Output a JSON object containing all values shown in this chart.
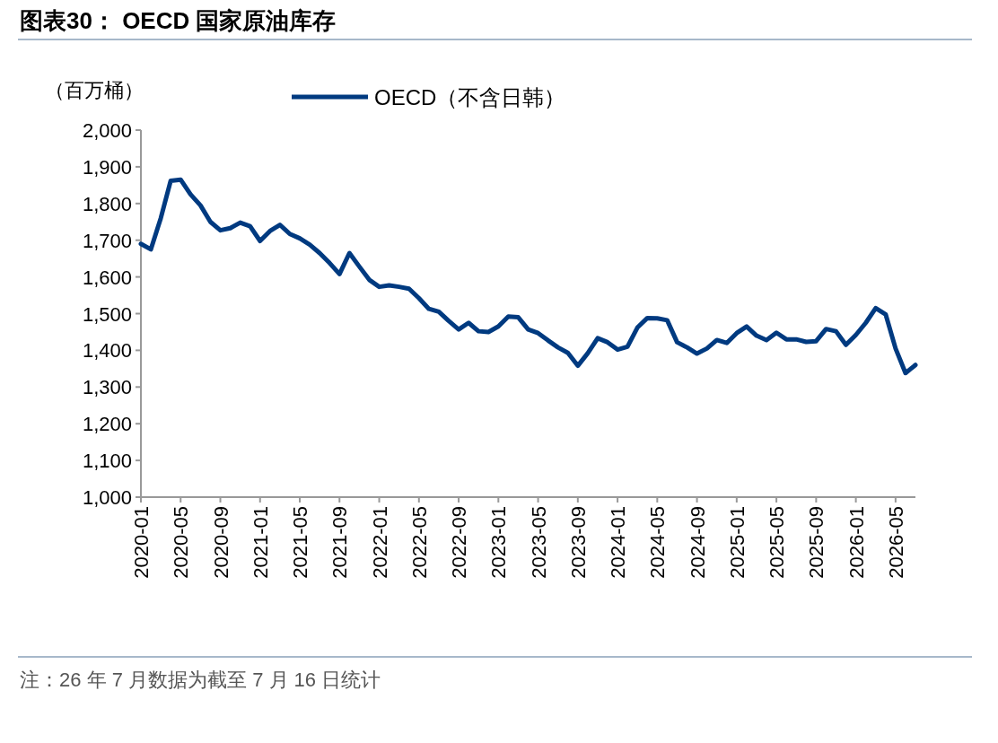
{
  "chart_data": {
    "type": "line",
    "title": "图表30： OECD 国家原油库存",
    "ylabel": "（百万桶）",
    "legend": "top",
    "grid": false,
    "marker": "none",
    "line_style": "solid",
    "annotations": [
      "注：26 年 7 月数据为截至 7 月 16 日统计"
    ],
    "x": [
      "2020-01",
      "2020-02",
      "2020-03",
      "2020-04",
      "2020-05",
      "2020-06",
      "2020-07",
      "2020-08",
      "2020-09",
      "2020-10",
      "2020-11",
      "2020-12",
      "2021-01",
      "2021-02",
      "2021-03",
      "2021-04",
      "2021-05",
      "2021-06",
      "2021-07",
      "2021-08",
      "2021-09",
      "2021-10",
      "2021-11",
      "2021-12",
      "2022-01",
      "2022-02",
      "2022-03",
      "2022-04",
      "2022-05",
      "2022-06",
      "2022-07",
      "2022-08",
      "2022-09",
      "2022-10",
      "2022-11",
      "2022-12",
      "2023-01",
      "2023-02",
      "2023-03",
      "2023-04",
      "2023-05",
      "2023-06",
      "2023-07",
      "2023-08",
      "2023-09",
      "2023-10",
      "2023-11",
      "2023-12",
      "2024-01",
      "2024-02",
      "2024-03",
      "2024-04",
      "2024-05",
      "2024-06",
      "2024-07",
      "2024-08",
      "2024-09",
      "2024-10",
      "2024-11",
      "2024-12",
      "2025-01",
      "2025-02",
      "2025-03",
      "2025-04",
      "2025-05",
      "2025-06",
      "2025-07",
      "2025-08",
      "2025-09",
      "2025-10",
      "2025-11",
      "2025-12",
      "2026-01",
      "2026-02",
      "2026-03",
      "2026-04",
      "2026-05",
      "2026-06",
      "2026-07"
    ],
    "series": [
      {
        "name": "OECD（不含日韩）",
        "color": "#003a80",
        "values": [
          1690,
          1675,
          1760,
          1862,
          1865,
          1825,
          1795,
          1750,
          1727,
          1733,
          1748,
          1738,
          1698,
          1725,
          1742,
          1717,
          1705,
          1688,
          1665,
          1638,
          1608,
          1665,
          1628,
          1592,
          1573,
          1577,
          1573,
          1568,
          1542,
          1513,
          1505,
          1480,
          1457,
          1475,
          1452,
          1450,
          1465,
          1492,
          1490,
          1457,
          1447,
          1427,
          1408,
          1393,
          1358,
          1392,
          1433,
          1422,
          1402,
          1410,
          1462,
          1488,
          1487,
          1482,
          1422,
          1408,
          1391,
          1405,
          1428,
          1420,
          1447,
          1465,
          1440,
          1428,
          1448,
          1430,
          1430,
          1423,
          1425,
          1458,
          1452,
          1415,
          1442,
          1475,
          1515,
          1498,
          1405,
          1338,
          1360
        ]
      }
    ],
    "xlim": [
      "2020-01",
      "2026-07"
    ],
    "xticks": [
      "2020-01",
      "2020-05",
      "2020-09",
      "2021-01",
      "2021-05",
      "2021-09",
      "2022-01",
      "2022-05",
      "2022-09",
      "2023-01",
      "2023-05",
      "2023-09",
      "2024-01",
      "2024-05",
      "2024-09",
      "2025-01",
      "2025-05",
      "2025-09",
      "2026-01",
      "2026-05"
    ],
    "ylim": [
      1000,
      2000
    ],
    "yticks": [
      {
        "value": 1000,
        "label": "1,000"
      },
      {
        "value": 1100,
        "label": "1,100"
      },
      {
        "value": 1200,
        "label": "1,200"
      },
      {
        "value": 1300,
        "label": "1,300"
      },
      {
        "value": 1400,
        "label": "1,400"
      },
      {
        "value": 1500,
        "label": "1,500"
      },
      {
        "value": 1600,
        "label": "1,600"
      },
      {
        "value": 1700,
        "label": "1,700"
      },
      {
        "value": 1800,
        "label": "1,800"
      },
      {
        "value": 1900,
        "label": "1,900"
      },
      {
        "value": 2000,
        "label": "2,000"
      }
    ]
  }
}
